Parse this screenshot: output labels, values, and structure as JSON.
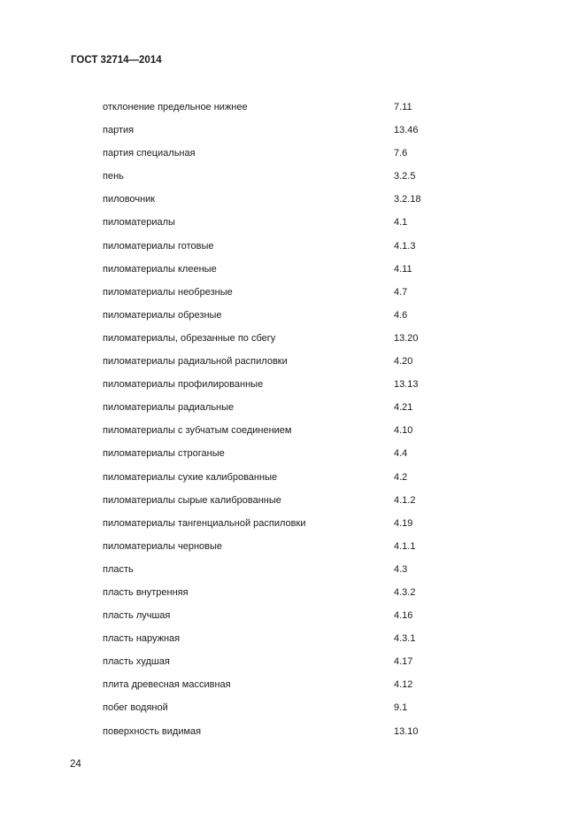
{
  "header": {
    "title": "ГОСТ 32714—2014"
  },
  "index": [
    {
      "term": "отклонение предельное нижнее",
      "ref": "7.11"
    },
    {
      "term": "партия",
      "ref": "13.46"
    },
    {
      "term": "партия специальная",
      "ref": "7.6"
    },
    {
      "term": "пень",
      "ref": "3.2.5"
    },
    {
      "term": "пиловочник",
      "ref": "3.2.18"
    },
    {
      "term": "пиломатериалы",
      "ref": "4.1"
    },
    {
      "term": "пиломатериалы готовые",
      "ref": "4.1.3"
    },
    {
      "term": "пиломатериалы клееные",
      "ref": "4.11"
    },
    {
      "term": "пиломатериалы необрезные",
      "ref": "4.7"
    },
    {
      "term": "пиломатериалы обрезные",
      "ref": "4.6"
    },
    {
      "term": "пиломатериалы, обрезанные по сбегу",
      "ref": "13.20"
    },
    {
      "term": "пиломатериалы радиальной распиловки",
      "ref": "4.20"
    },
    {
      "term": "пиломатериалы профилированные",
      "ref": "13.13"
    },
    {
      "term": "пиломатериалы радиальные",
      "ref": "4.21"
    },
    {
      "term": "пиломатериалы с зубчатым соединением",
      "ref": "4.10"
    },
    {
      "term": "пиломатериалы строганые",
      "ref": "4.4"
    },
    {
      "term": "пиломатериалы сухие калиброванные",
      "ref": "4.2"
    },
    {
      "term": "пиломатериалы сырые калиброванные",
      "ref": "4.1.2"
    },
    {
      "term": "пиломатериалы тангенциальной распиловки",
      "ref": "4.19"
    },
    {
      "term": "пиломатериалы черновые",
      "ref": "4.1.1"
    },
    {
      "term": "пласть",
      "ref": "4.3"
    },
    {
      "term": "пласть внутренняя",
      "ref": "4.3.2"
    },
    {
      "term": "пласть лучшая",
      "ref": "4.16"
    },
    {
      "term": "пласть наружная",
      "ref": "4.3.1"
    },
    {
      "term": "пласть худшая",
      "ref": "4.17"
    },
    {
      "term": "плита древесная массивная",
      "ref": "4.12"
    },
    {
      "term": "побег водяной",
      "ref": "9.1"
    },
    {
      "term": "поверхность видимая",
      "ref": "13.10"
    }
  ],
  "footer": {
    "page_number": "24"
  }
}
